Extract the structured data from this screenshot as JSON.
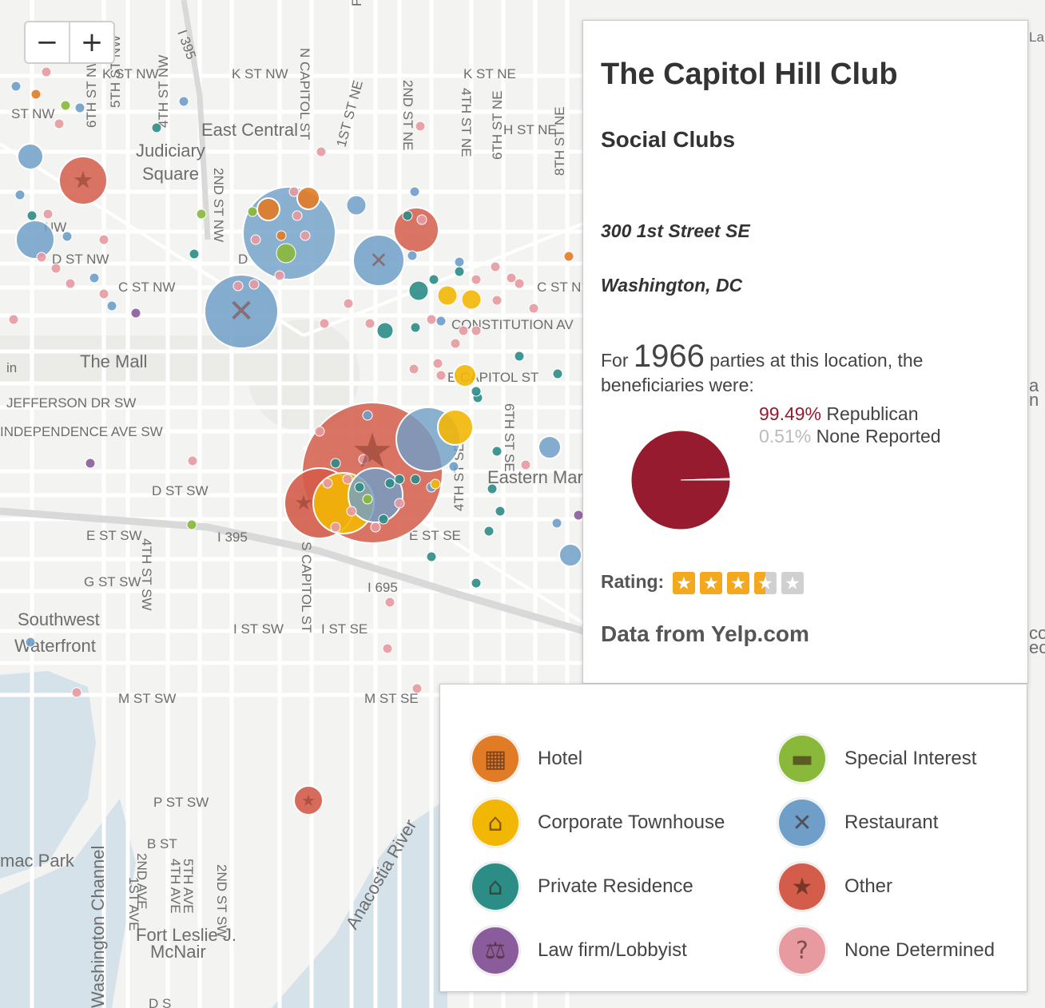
{
  "zoom": {
    "out_label": "−",
    "in_label": "+"
  },
  "map": {
    "street_labels": [
      "K ST NW",
      "K ST NW",
      "K ST NE",
      "N CAPITOL ST",
      "FIRST ST",
      "1ST ST NE",
      "2ND ST NE",
      "4TH ST NE",
      "H ST NE",
      "6TH ST NE",
      "8TH ST NE",
      "4TH ST NW",
      "5TH ST NW",
      "6TH ST NW",
      "I 395",
      "East Central",
      "Judiciary",
      "Square",
      "2ND ST NW",
      "ST NW",
      "NW",
      "D ST NW",
      "D",
      "C ST NW",
      "C ST N",
      "CONSTITUTION AV",
      "E CAPITOL ST",
      "The Mall",
      "JEFFERSON DR SW",
      "INDEPENDENCE AVE SW",
      "D ST SW",
      "E ST SW",
      "I 395",
      "E ST SE",
      "4TH ST SE",
      "6TH ST SE",
      "Eastern Market",
      "G ST SW",
      "4TH ST SW",
      "S CAPITOL ST",
      "I 695",
      "I ST SW",
      "I ST SE",
      "Southwest",
      "Waterfront",
      "M ST SW",
      "M ST SE",
      "P ST SW",
      "B ST",
      "Anacostia River",
      "Fort Leslie J.",
      "McNair",
      "1ST AVE",
      "2ND AVE",
      "4TH AVE",
      "5TH AVE",
      "2ND ST SW",
      "Washington Channel",
      "D S",
      "mac Park",
      "in",
      "La",
      "a P",
      "n F",
      "cos",
      "ect"
    ],
    "colors": {
      "hotel": "#e17b25",
      "townhouse": "#f2b705",
      "residence": "#2c8c86",
      "lobbyist": "#8a5c9b",
      "special": "#8ab83a",
      "restaurant": "#6f9fc8",
      "other": "#d45c4a",
      "none": "#e79aa0"
    }
  },
  "info": {
    "title": "The Capitol Hill Club",
    "category": "Social Clubs",
    "address1": "300 1st Street SE",
    "address2": "Washington, DC",
    "for_word": "For",
    "party_count": "1966",
    "party_text": "parties at this location, the beneficiaries were:",
    "republican_pct": "99.49%",
    "republican_label": "Republican",
    "none_pct": "0.51%",
    "none_label": "None Reported",
    "pie": [
      {
        "label": "Republican",
        "value": 99.49,
        "color": "#971b2f"
      },
      {
        "label": "None Reported",
        "value": 0.51,
        "color": "#cccccc"
      }
    ],
    "rating_label": "Rating:",
    "rating_value": 3.5,
    "rating_max": 5,
    "source": "Data from Yelp.com"
  },
  "legend": {
    "items": [
      {
        "label": "Hotel",
        "icon": "hotel-icon",
        "color": "#e17b25"
      },
      {
        "label": "Special Interest",
        "icon": "briefcase-icon",
        "color": "#8ab83a"
      },
      {
        "label": "Corporate Townhouse",
        "icon": "townhouse-icon",
        "color": "#f2b705"
      },
      {
        "label": "Restaurant",
        "icon": "fork-knife-icon",
        "color": "#6f9fc8"
      },
      {
        "label": "Private Residence",
        "icon": "house-icon",
        "color": "#2c8c86"
      },
      {
        "label": "Other",
        "icon": "star-icon",
        "color": "#d45c4a"
      },
      {
        "label": "Law firm/Lobbyist",
        "icon": "scales-icon",
        "color": "#8a5c9b"
      },
      {
        "label": "None Determined",
        "icon": "question-icon",
        "color": "#e79aa0"
      }
    ]
  }
}
